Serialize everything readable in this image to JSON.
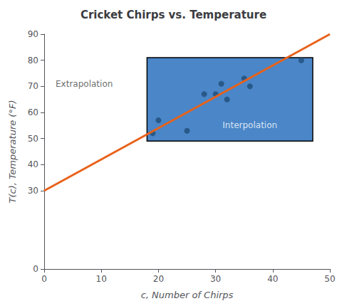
{
  "chart_data": {
    "type": "scatter",
    "title": "Cricket Chirps vs. Temperature",
    "xlabel": "c, Number of Chirps",
    "ylabel": "T(c), Temperature (°F)",
    "xlim": [
      0,
      50
    ],
    "ylim": [
      0,
      90
    ],
    "xticks": [
      0,
      10,
      20,
      30,
      40,
      50
    ],
    "yticks": [
      0,
      30,
      40,
      50,
      60,
      70,
      80,
      90
    ],
    "grid": false,
    "series": [
      {
        "type": "scatter",
        "color": "#1f4e79",
        "x": [
          19,
          20,
          25,
          28,
          30,
          31,
          32,
          35,
          36,
          45
        ],
        "values": [
          52,
          57,
          53,
          67,
          67,
          71,
          65,
          73,
          70,
          80
        ]
      },
      {
        "type": "line",
        "color": "#e8621a",
        "x": [
          0,
          50
        ],
        "values": [
          30,
          90
        ]
      }
    ],
    "rectangle": {
      "x": 18,
      "y": 49,
      "width": 29,
      "height": 32,
      "color": "#4a86c8"
    },
    "annotations": [
      {
        "text": "Interpolation",
        "x": 36,
        "y": 55,
        "align": "center"
      },
      {
        "text": "Extrapolation",
        "x": 2,
        "y": 71,
        "align": "left"
      }
    ]
  }
}
